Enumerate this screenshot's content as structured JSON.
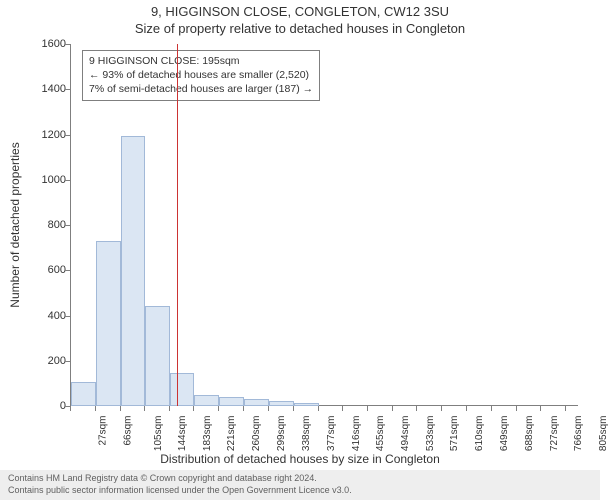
{
  "header": {
    "line1": "9, HIGGINSON CLOSE, CONGLETON, CW12 3SU",
    "line2": "Size of property relative to detached houses in Congleton"
  },
  "chart": {
    "type": "histogram",
    "y_axis_label": "Number of detached properties",
    "x_axis_label": "Distribution of detached houses by size in Congleton",
    "ylim": [
      0,
      1600
    ],
    "ytick_step": 200,
    "yticks": [
      0,
      200,
      400,
      600,
      800,
      1000,
      1200,
      1400,
      1600
    ],
    "xlim": [
      27,
      825
    ],
    "xticks": [
      27,
      66,
      105,
      144,
      183,
      221,
      260,
      299,
      338,
      377,
      416,
      455,
      494,
      533,
      571,
      610,
      649,
      688,
      727,
      766,
      805
    ],
    "xtick_suffix": "sqm",
    "bar_color": "#dbe6f3",
    "bar_border_color": "#a2b9d8",
    "background_color": "#ffffff",
    "axis_color": "#7f7f7f",
    "tick_fontsize": 11,
    "label_fontsize": 12,
    "title_fontsize": 13,
    "bars": [
      {
        "x_start": 27,
        "x_end": 66,
        "value": 105
      },
      {
        "x_start": 66,
        "x_end": 105,
        "value": 730
      },
      {
        "x_start": 105,
        "x_end": 144,
        "value": 1195
      },
      {
        "x_start": 144,
        "x_end": 183,
        "value": 440
      },
      {
        "x_start": 183,
        "x_end": 221,
        "value": 145
      },
      {
        "x_start": 221,
        "x_end": 260,
        "value": 50
      },
      {
        "x_start": 260,
        "x_end": 299,
        "value": 40
      },
      {
        "x_start": 299,
        "x_end": 338,
        "value": 30
      },
      {
        "x_start": 338,
        "x_end": 377,
        "value": 20
      },
      {
        "x_start": 377,
        "x_end": 416,
        "value": 15
      }
    ],
    "marker": {
      "x_value": 195,
      "color": "#cc3333",
      "line_width": 1
    },
    "callout": {
      "line1": "9 HIGGINSON CLOSE: 195sqm",
      "line2": "← 93% of detached houses are smaller (2,520)",
      "line3": "7% of semi-detached houses are larger (187) →",
      "border_color": "#7f7f7f",
      "background_color": "#ffffff",
      "fontsize": 10.5
    }
  },
  "footer": {
    "line1": "Contains HM Land Registry data © Crown copyright and database right 2024.",
    "line2": "Contains public sector information licensed under the Open Government Licence v3.0.",
    "background_color": "#eeeeee",
    "text_color": "#606060",
    "fontsize": 9
  }
}
